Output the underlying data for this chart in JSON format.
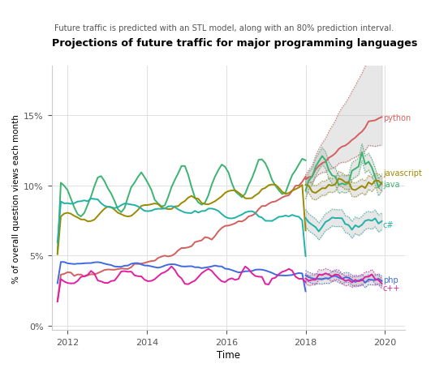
{
  "title": "Projections of future traffic for major programming languages",
  "subtitle": "Future traffic is predicted with an STL model, along with an 80% prediction interval.",
  "xlabel": "Time",
  "ylabel": "% of overall question views each month",
  "background_color": "#ffffff",
  "grid_color": "#e0e0e0",
  "yticks": [
    0,
    5,
    10,
    15
  ],
  "xticks": [
    2012,
    2014,
    2016,
    2018,
    2020
  ],
  "xlim": [
    2011.6,
    2020.5
  ],
  "ylim": [
    -0.3,
    18.5
  ],
  "colors": {
    "python": "#d45f5f",
    "javascript": "#3cb371",
    "java": "#9b8a00",
    "c#": "#20b2aa",
    "php": "#4169e1",
    "cpp": "#e020a0"
  },
  "label_colors": {
    "python": "#d45f5f",
    "javascript": "#9b8a00",
    "java": "#3cb371",
    "c#": "#20b2aa",
    "php": "#4169e1",
    "cpp": "#e020a0"
  }
}
